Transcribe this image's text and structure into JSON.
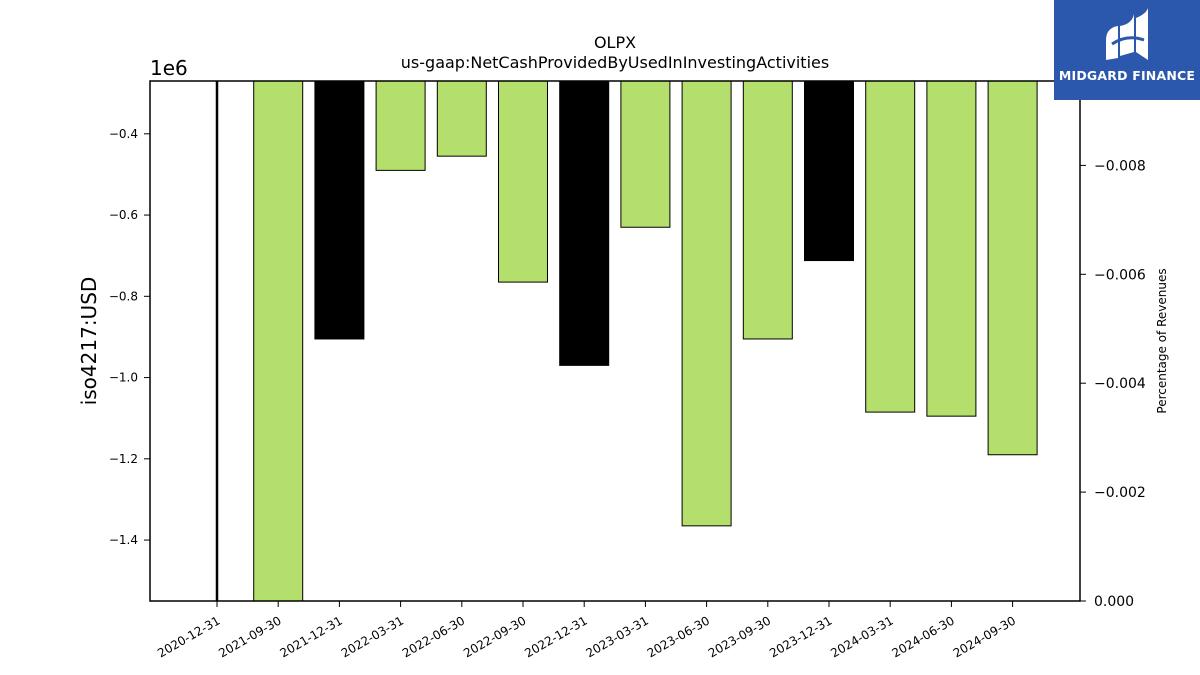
{
  "brand": {
    "name": "MIDGARD FINANCE",
    "logo_icon": "midgard-logo-icon",
    "background_color": "#2b58ad"
  },
  "chart_data": {
    "type": "bar",
    "title": "OLPX",
    "subtitle": "us-gaap:NetCashProvidedByUsedInInvestingActivities",
    "ylabel": "iso4217:USD",
    "ylabel_right": "Percentage of Revenues",
    "y_offset_text": "1e6",
    "ylim": [
      -1550000,
      -270000
    ],
    "yticks": [
      -0.4,
      -0.6,
      -0.8,
      -1.0,
      -1.2,
      -1.4
    ],
    "ytick_labels": [
      "−0.4",
      "−0.6",
      "−0.8",
      "−1.0",
      "−1.2",
      "−1.4"
    ],
    "y2lim": [
      0,
      -0.00955
    ],
    "y2ticks": [
      -0.008,
      -0.006,
      -0.004,
      -0.002,
      0.0
    ],
    "y2tick_labels": [
      "−0.008",
      "−0.006",
      "−0.004",
      "−0.002",
      "0.000"
    ],
    "categories": [
      "2020-12-31",
      "2021-09-30",
      "2021-12-31",
      "2022-03-31",
      "2022-06-30",
      "2022-09-30",
      "2022-12-31",
      "2023-03-31",
      "2023-06-30",
      "2023-09-30",
      "2023-12-31",
      "2024-03-31",
      "2024-06-30",
      "2024-09-30"
    ],
    "values": [
      null,
      -1560000,
      -905000,
      -490000,
      -455000,
      -765000,
      -970000,
      -630000,
      -1365000,
      -905000,
      -712000,
      -1085000,
      -1095000,
      -1190000
    ],
    "bar_colors": [
      "#000000",
      "#b5df6c",
      "#000000",
      "#b5df6c",
      "#b5df6c",
      "#b5df6c",
      "#000000",
      "#b5df6c",
      "#b5df6c",
      "#b5df6c",
      "#000000",
      "#b5df6c",
      "#b5df6c",
      "#b5df6c"
    ],
    "grid": false,
    "legend": "none"
  }
}
